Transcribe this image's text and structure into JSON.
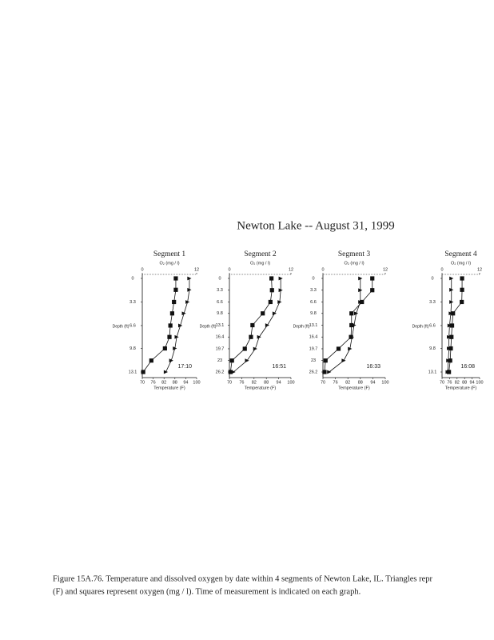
{
  "title": "Newton Lake -- August 31, 1999",
  "caption": [
    "Figure 15A.76. Temperature and dissolved oxygen by date within 4 segments of Newton Lake, IL.  Triangles repr",
    "(F)  and squares represent oxygen (mg / l). Time of measurement is indicated on each graph."
  ],
  "chart_data": [
    {
      "type": "depth-profile",
      "title": "Segment 1",
      "annotation": "17:10",
      "y_label": "Depth (ft)",
      "x_label": "Temperature (F)",
      "x2_label": "O₂ (mg / l)",
      "y": [
        0,
        1.6,
        3.3,
        4.9,
        6.6,
        8.2,
        9.8,
        11.5,
        13.1
      ],
      "ylim": [
        0,
        13.1
      ],
      "yticks": [
        0,
        3.3,
        6.6,
        9.8,
        13.1
      ],
      "xlim": [
        70,
        100
      ],
      "xticks": [
        70,
        76,
        82,
        88,
        94,
        100
      ],
      "x2lim": [
        0,
        12
      ],
      "x2ticks": [
        0,
        12
      ],
      "series": [
        {
          "marker": "triangle",
          "color": "#111111",
          "values": [
            96,
            96,
            95,
            93,
            91,
            89,
            88,
            86,
            83
          ]
        },
        {
          "marker": "square",
          "color": "#111111",
          "axis": "x2",
          "values": [
            7.4,
            7.4,
            7.0,
            6.6,
            6.2,
            6.0,
            5.0,
            2.0,
            0.2
          ]
        }
      ]
    },
    {
      "type": "depth-profile",
      "title": "Segment 2",
      "annotation": "16:51",
      "y_label": "Depth (ft)",
      "x_label": "Temperature (F)",
      "x2_label": "O₂ (mg / l)",
      "y": [
        0,
        3.3,
        6.6,
        9.8,
        13.1,
        16.4,
        19.7,
        23.0,
        26.2
      ],
      "ylim": [
        0,
        26.2
      ],
      "yticks": [
        0,
        3.3,
        6.6,
        9.8,
        13.1,
        16.4,
        19.7,
        23.0,
        26.2
      ],
      "xlim": [
        70,
        100
      ],
      "xticks": [
        70,
        76,
        82,
        88,
        94,
        100
      ],
      "x2lim": [
        0,
        12
      ],
      "x2ticks": [
        0,
        12
      ],
      "series": [
        {
          "marker": "triangle",
          "color": "#111111",
          "values": [
            95,
            95,
            94.5,
            92,
            88.5,
            84.5,
            82.6,
            78.6,
            72
          ]
        },
        {
          "marker": "square",
          "color": "#111111",
          "axis": "x2",
          "values": [
            8.2,
            8.3,
            8.0,
            6.5,
            4.5,
            4.2,
            3.0,
            0.5,
            0.2
          ]
        }
      ]
    },
    {
      "type": "depth-profile",
      "title": "Segment 3",
      "annotation": "16:33",
      "y_label": "Depth (ft)",
      "x_label": "Temperature (F)",
      "x2_label": "O₂ (mg / l)",
      "y": [
        0,
        3.3,
        6.6,
        9.8,
        13.1,
        16.4,
        19.7,
        23.0,
        26.2
      ],
      "ylim": [
        0,
        26.2
      ],
      "yticks": [
        0,
        3.3,
        6.6,
        9.8,
        13.1,
        16.4,
        19.7,
        23.0,
        26.2
      ],
      "xlim": [
        70,
        100
      ],
      "xticks": [
        70,
        76,
        82,
        88,
        94,
        100
      ],
      "x2lim": [
        0,
        12
      ],
      "x2ticks": [
        0,
        12
      ],
      "series": [
        {
          "marker": "triangle",
          "color": "#111111",
          "values": [
            88,
            88,
            88,
            86,
            85,
            84,
            83,
            80,
            73
          ]
        },
        {
          "marker": "square",
          "color": "#111111",
          "axis": "x2",
          "values": [
            9.5,
            9.5,
            7.5,
            5.5,
            5.5,
            5.4,
            3.0,
            0.5,
            0.3
          ]
        }
      ]
    },
    {
      "type": "depth-profile",
      "title": "Segment 4",
      "annotation": "16:08",
      "y_label": "Depth (ft)",
      "x_label": "Temperature (F)",
      "x2_label": "O₂ (mg / l)",
      "y": [
        0,
        1.6,
        3.3,
        4.9,
        6.6,
        8.2,
        9.8,
        11.5,
        13.1
      ],
      "ylim": [
        0,
        13.1
      ],
      "yticks": [
        0,
        3.3,
        6.6,
        9.8,
        13.1
      ],
      "xlim": [
        70,
        100
      ],
      "xticks": [
        70,
        76,
        82,
        88,
        94,
        100
      ],
      "x2lim": [
        0,
        12
      ],
      "x2ticks": [
        0,
        12
      ],
      "series": [
        {
          "marker": "triangle",
          "color": "#111111",
          "values": [
            77.5,
            77.5,
            77.5,
            77,
            76,
            75.5,
            75.5,
            75,
            74.5
          ]
        },
        {
          "marker": "square",
          "color": "#111111",
          "axis": "x2",
          "values": [
            6.4,
            6.4,
            6.3,
            3.5,
            3.2,
            3.0,
            2.8,
            2.6,
            2.2
          ]
        }
      ]
    }
  ]
}
